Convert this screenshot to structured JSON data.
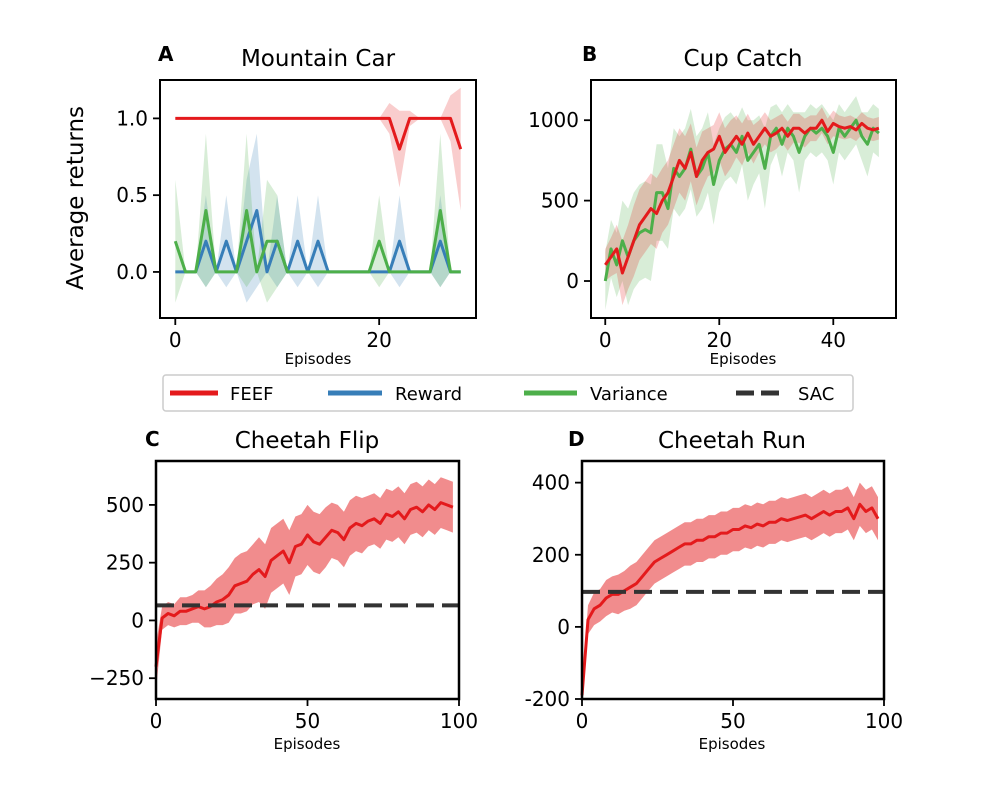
{
  "legend": {
    "entries": [
      {
        "label": "FEEF",
        "color": "#e41a1c",
        "style": "solid"
      },
      {
        "label": "Reward",
        "color": "#377eb8",
        "style": "solid"
      },
      {
        "label": "Variance",
        "color": "#4daf4a",
        "style": "solid"
      },
      {
        "label": "SAC",
        "color": "#333333",
        "style": "dashed"
      }
    ]
  },
  "chart_data": [
    {
      "panel": "A",
      "type": "line",
      "title": "Mountain Car",
      "xlabel": "Episodes",
      "ylabel": "Average returns",
      "xlim": [
        -1.5,
        29.5
      ],
      "ylim": [
        -0.3,
        1.25
      ],
      "xticks": [
        0,
        20
      ],
      "yticks": [
        0.0,
        0.5,
        1.0
      ],
      "ytick_labels": [
        "0.0",
        "0.5",
        "1.0"
      ],
      "series": [
        {
          "name": "FEEF",
          "color": "#e41a1c",
          "x": [
            0,
            1,
            2,
            3,
            4,
            5,
            6,
            7,
            8,
            9,
            10,
            11,
            12,
            13,
            14,
            15,
            16,
            17,
            18,
            19,
            20,
            21,
            22,
            23,
            24,
            25,
            26,
            27,
            28
          ],
          "values": [
            1,
            1,
            1,
            1,
            1,
            1,
            1,
            1,
            1,
            1,
            1,
            1,
            1,
            1,
            1,
            1,
            1,
            1,
            1,
            1,
            1,
            1,
            0.8,
            1,
            1,
            1,
            1,
            1,
            0.8
          ],
          "spread": [
            0,
            0,
            0,
            0,
            0,
            0,
            0,
            0,
            0,
            0,
            0,
            0,
            0,
            0,
            0,
            0,
            0,
            0,
            0,
            0,
            0,
            0.1,
            0.25,
            0.05,
            0,
            0,
            0,
            0.15,
            0.4
          ]
        },
        {
          "name": "Reward",
          "color": "#377eb8",
          "x": [
            0,
            1,
            2,
            3,
            4,
            5,
            6,
            7,
            8,
            9,
            10,
            11,
            12,
            13,
            14,
            15,
            16,
            17,
            18,
            19,
            20,
            21,
            22,
            23,
            24,
            25,
            26,
            27,
            28
          ],
          "values": [
            0,
            0,
            0,
            0.2,
            0,
            0.2,
            0,
            0.2,
            0.4,
            0,
            0.2,
            0,
            0.2,
            0,
            0.2,
            0,
            0,
            0,
            0,
            0,
            0,
            0,
            0.2,
            0,
            0,
            0,
            0.2,
            0,
            0
          ],
          "spread": [
            0,
            0,
            0,
            0.3,
            0,
            0.3,
            0,
            0.4,
            0.5,
            0,
            0.3,
            0,
            0.3,
            0,
            0.3,
            0,
            0,
            0,
            0,
            0,
            0,
            0,
            0.3,
            0,
            0,
            0,
            0.3,
            0,
            0
          ]
        },
        {
          "name": "Variance",
          "color": "#4daf4a",
          "x": [
            0,
            1,
            2,
            3,
            4,
            5,
            6,
            7,
            8,
            9,
            10,
            11,
            12,
            13,
            14,
            15,
            16,
            17,
            18,
            19,
            20,
            21,
            22,
            23,
            24,
            25,
            26,
            27,
            28
          ],
          "values": [
            0.2,
            0,
            0,
            0.4,
            0,
            0,
            0,
            0.4,
            0,
            0.2,
            0.2,
            0,
            0,
            0,
            0,
            0,
            0,
            0,
            0,
            0,
            0.2,
            0,
            0,
            0,
            0,
            0,
            0.4,
            0,
            0
          ],
          "spread": [
            0.4,
            0,
            0,
            0.5,
            0,
            0,
            0,
            0.5,
            0,
            0.4,
            0.3,
            0,
            0,
            0,
            0,
            0,
            0,
            0,
            0,
            0,
            0.3,
            0,
            0,
            0,
            0,
            0,
            0.5,
            0,
            0
          ]
        }
      ]
    },
    {
      "panel": "B",
      "type": "line",
      "title": "Cup Catch",
      "xlabel": "Episodes",
      "ylabel": "",
      "xlim": [
        -2.5,
        51
      ],
      "ylim": [
        -230,
        1250
      ],
      "xticks": [
        0,
        20,
        40
      ],
      "yticks": [
        0,
        500,
        1000
      ],
      "series": [
        {
          "name": "Variance",
          "color": "#4daf4a",
          "x": [
            0,
            1,
            2,
            3,
            4,
            5,
            6,
            7,
            8,
            9,
            10,
            11,
            12,
            13,
            14,
            15,
            16,
            17,
            18,
            19,
            20,
            21,
            22,
            23,
            24,
            25,
            26,
            27,
            28,
            29,
            30,
            31,
            32,
            33,
            34,
            35,
            36,
            37,
            38,
            39,
            40,
            41,
            42,
            43,
            44,
            45,
            46,
            47,
            48
          ],
          "values": [
            0,
            200,
            100,
            250,
            150,
            250,
            300,
            320,
            300,
            550,
            550,
            450,
            700,
            650,
            700,
            820,
            650,
            700,
            800,
            600,
            750,
            820,
            850,
            800,
            900,
            750,
            800,
            850,
            700,
            900,
            950,
            850,
            950,
            900,
            800,
            900,
            950,
            920,
            950,
            900,
            800,
            950,
            900,
            950,
            1000,
            900,
            850,
            950,
            920
          ],
          "spread": [
            180,
            180,
            200,
            250,
            300,
            300,
            300,
            300,
            300,
            300,
            300,
            250,
            250,
            250,
            250,
            250,
            250,
            250,
            250,
            250,
            200,
            200,
            200,
            200,
            180,
            250,
            200,
            180,
            250,
            180,
            150,
            200,
            150,
            150,
            250,
            150,
            150,
            150,
            150,
            150,
            200,
            150,
            150,
            150,
            150,
            150,
            200,
            150,
            150
          ]
        },
        {
          "name": "FEEF",
          "color": "#e41a1c",
          "x": [
            0,
            1,
            2,
            3,
            4,
            5,
            6,
            7,
            8,
            9,
            10,
            11,
            12,
            13,
            14,
            15,
            16,
            17,
            18,
            19,
            20,
            21,
            22,
            23,
            24,
            25,
            26,
            27,
            28,
            29,
            30,
            31,
            32,
            33,
            34,
            35,
            36,
            37,
            38,
            39,
            40,
            41,
            42,
            43,
            44,
            45,
            46,
            47,
            48
          ],
          "values": [
            100,
            150,
            200,
            50,
            150,
            250,
            350,
            400,
            450,
            420,
            500,
            550,
            650,
            750,
            700,
            800,
            650,
            750,
            800,
            820,
            900,
            800,
            850,
            900,
            850,
            920,
            850,
            900,
            950,
            900,
            920,
            950,
            900,
            950,
            950,
            920,
            950,
            950,
            1000,
            930,
            980,
            960,
            950,
            960,
            940,
            980,
            950,
            940,
            950
          ],
          "spread": [
            100,
            120,
            150,
            200,
            200,
            220,
            220,
            220,
            220,
            220,
            200,
            200,
            200,
            200,
            200,
            180,
            180,
            180,
            150,
            150,
            150,
            150,
            150,
            130,
            130,
            120,
            120,
            100,
            100,
            100,
            100,
            90,
            90,
            90,
            90,
            90,
            80,
            80,
            80,
            80,
            80,
            70,
            70,
            70,
            70,
            70,
            70,
            70,
            70
          ]
        }
      ]
    },
    {
      "panel": "C",
      "type": "line",
      "title": "Cheetah Flip",
      "xlabel": "Episodes",
      "ylabel": "",
      "xlim": [
        0,
        100
      ],
      "ylim": [
        -340,
        690
      ],
      "xticks": [
        0,
        50,
        100
      ],
      "yticks": [
        -250,
        0,
        250,
        500
      ],
      "ytick_labels": [
        "−250",
        "0",
        "250",
        "500"
      ],
      "series": [
        {
          "name": "FEEF",
          "color": "#e41a1c",
          "x": [
            0,
            2,
            4,
            6,
            8,
            10,
            12,
            14,
            16,
            18,
            20,
            22,
            24,
            26,
            28,
            30,
            32,
            34,
            36,
            38,
            40,
            42,
            44,
            46,
            48,
            50,
            52,
            54,
            56,
            58,
            60,
            62,
            64,
            66,
            68,
            70,
            72,
            74,
            76,
            78,
            80,
            82,
            84,
            86,
            88,
            90,
            92,
            94,
            96,
            98
          ],
          "values": [
            -200,
            10,
            30,
            20,
            40,
            40,
            50,
            60,
            50,
            60,
            80,
            90,
            110,
            150,
            160,
            170,
            200,
            220,
            190,
            260,
            280,
            300,
            250,
            320,
            330,
            370,
            340,
            330,
            360,
            390,
            380,
            350,
            400,
            420,
            410,
            430,
            440,
            420,
            460,
            450,
            470,
            440,
            480,
            490,
            470,
            500,
            480,
            510,
            500,
            490
          ],
          "spread": [
            100,
            50,
            50,
            50,
            60,
            60,
            60,
            70,
            80,
            90,
            100,
            110,
            120,
            120,
            130,
            130,
            130,
            140,
            140,
            140,
            140,
            140,
            140,
            130,
            130,
            130,
            130,
            130,
            130,
            120,
            120,
            120,
            120,
            120,
            120,
            110,
            110,
            110,
            110,
            110,
            110,
            110,
            110,
            110,
            110,
            110,
            110,
            110,
            110,
            110
          ]
        },
        {
          "name": "SAC",
          "color": "#333333",
          "dashed": true,
          "x": [
            0,
            100
          ],
          "values": [
            65,
            65
          ]
        }
      ]
    },
    {
      "panel": "D",
      "type": "line",
      "title": "Cheetah Run",
      "xlabel": "Episodes",
      "ylabel": "",
      "xlim": [
        0,
        100
      ],
      "ylim": [
        -200,
        460
      ],
      "xticks": [
        0,
        50,
        100
      ],
      "yticks": [
        -200,
        0,
        200,
        400
      ],
      "series": [
        {
          "name": "FEEF",
          "color": "#e41a1c",
          "x": [
            0,
            2,
            4,
            6,
            8,
            10,
            12,
            14,
            16,
            18,
            20,
            22,
            24,
            26,
            28,
            30,
            32,
            34,
            36,
            38,
            40,
            42,
            44,
            46,
            48,
            50,
            52,
            54,
            56,
            58,
            60,
            62,
            64,
            66,
            68,
            70,
            72,
            74,
            76,
            78,
            80,
            82,
            84,
            86,
            88,
            90,
            92,
            94,
            96,
            98
          ],
          "values": [
            -190,
            20,
            50,
            60,
            80,
            90,
            90,
            100,
            110,
            120,
            140,
            160,
            180,
            190,
            200,
            210,
            220,
            230,
            230,
            240,
            240,
            250,
            250,
            260,
            260,
            270,
            270,
            280,
            275,
            285,
            280,
            290,
            290,
            300,
            295,
            300,
            305,
            310,
            300,
            310,
            320,
            310,
            320,
            320,
            330,
            300,
            340,
            320,
            330,
            300
          ],
          "spread": [
            30,
            40,
            45,
            45,
            50,
            50,
            55,
            55,
            60,
            60,
            60,
            60,
            60,
            60,
            60,
            60,
            60,
            60,
            60,
            60,
            60,
            60,
            60,
            60,
            60,
            60,
            60,
            60,
            60,
            60,
            60,
            60,
            60,
            60,
            60,
            60,
            60,
            60,
            60,
            60,
            60,
            60,
            60,
            60,
            60,
            60,
            60,
            60,
            60,
            60
          ]
        },
        {
          "name": "SAC",
          "color": "#333333",
          "dashed": true,
          "x": [
            0,
            100
          ],
          "values": [
            97,
            97
          ]
        }
      ]
    }
  ]
}
